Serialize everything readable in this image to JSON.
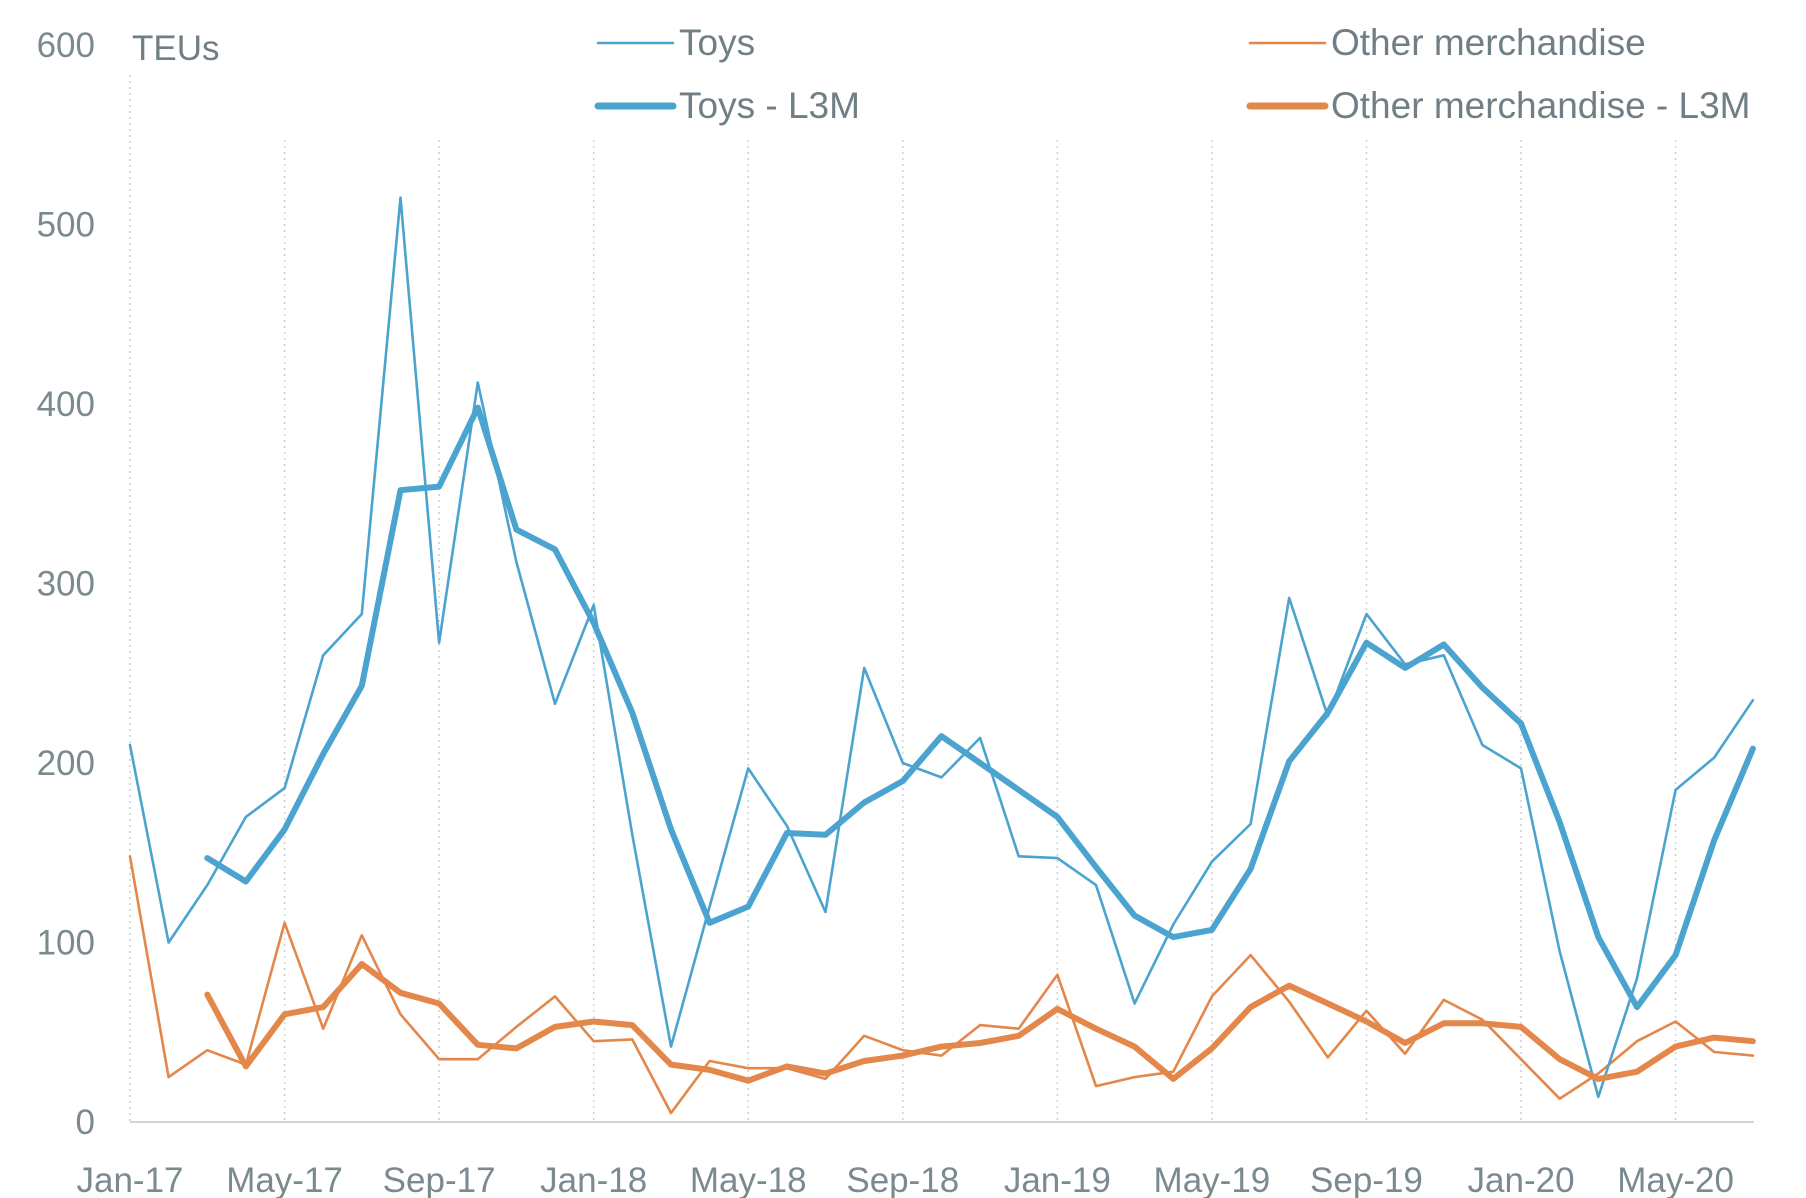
{
  "chart_data": {
    "type": "line",
    "title": "",
    "ylabel": "TEUs",
    "xlabel": "",
    "ylim": [
      0,
      600
    ],
    "yticks": [
      0,
      100,
      200,
      300,
      400,
      500,
      600
    ],
    "grid": "vertical dotted",
    "legend_position": "top",
    "x": [
      "Jan-17",
      "Feb-17",
      "Mar-17",
      "Apr-17",
      "May-17",
      "Jun-17",
      "Jul-17",
      "Aug-17",
      "Sep-17",
      "Oct-17",
      "Nov-17",
      "Dec-17",
      "Jan-18",
      "Feb-18",
      "Mar-18",
      "Apr-18",
      "May-18",
      "Jun-18",
      "Jul-18",
      "Aug-18",
      "Sep-18",
      "Oct-18",
      "Nov-18",
      "Dec-18",
      "Jan-19",
      "Feb-19",
      "Mar-19",
      "Apr-19",
      "May-19",
      "Jun-19",
      "Jul-19",
      "Aug-19",
      "Sep-19",
      "Oct-19",
      "Nov-19",
      "Dec-19",
      "Jan-20",
      "Feb-20",
      "Mar-20",
      "Apr-20",
      "May-20",
      "Jun-20",
      "Jul-20"
    ],
    "x_tick_labels": [
      "Jan-17",
      "May-17",
      "Sep-17",
      "Jan-18",
      "May-18",
      "Sep-18",
      "Jan-19",
      "May-19",
      "Sep-19",
      "Jan-20",
      "May-20"
    ],
    "series": [
      {
        "name": "Toys",
        "color": "#4ba3cf",
        "weight": "thin",
        "values": [
          210,
          100,
          132,
          170,
          186,
          260,
          283,
          515,
          267,
          412,
          312,
          233,
          288,
          160,
          42,
          120,
          197,
          165,
          117,
          253,
          200,
          192,
          214,
          148,
          147,
          132,
          66,
          110,
          145,
          166,
          292,
          226,
          283,
          255,
          260,
          210,
          197,
          95,
          14,
          80,
          185,
          203,
          235
        ]
      },
      {
        "name": "Other merchandise",
        "color": "#e3874a",
        "weight": "thin",
        "values": [
          148,
          25,
          40,
          32,
          111,
          52,
          104,
          60,
          35,
          35,
          53,
          70,
          45,
          46,
          5,
          34,
          30,
          30,
          24,
          48,
          40,
          37,
          54,
          52,
          82,
          20,
          25,
          28,
          70,
          93,
          67,
          36,
          62,
          38,
          68,
          57,
          35,
          13,
          27,
          45,
          56,
          39,
          37
        ]
      },
      {
        "name": "Toys - L3M",
        "color": "#4ba3cf",
        "weight": "thick",
        "values": [
          null,
          null,
          147,
          134,
          163,
          205,
          243,
          352,
          354,
          398,
          330,
          319,
          278,
          228,
          163,
          111,
          120,
          161,
          160,
          178,
          190,
          215,
          200,
          185,
          170,
          142,
          115,
          103,
          107,
          141,
          201,
          228,
          267,
          253,
          266,
          242,
          222,
          167,
          103,
          64,
          93,
          157,
          208
        ]
      },
      {
        "name": "Other merchandise - L3M",
        "color": "#e3874a",
        "weight": "thick",
        "values": [
          null,
          null,
          71,
          31,
          60,
          64,
          88,
          72,
          66,
          43,
          41,
          53,
          56,
          54,
          32,
          29,
          23,
          31,
          27,
          34,
          37,
          42,
          44,
          48,
          63,
          52,
          42,
          24,
          41,
          64,
          76,
          66,
          56,
          44,
          55,
          55,
          53,
          35,
          24,
          28,
          42,
          47,
          45
        ]
      }
    ],
    "legend": [
      {
        "label": "Toys",
        "series": "Toys"
      },
      {
        "label": "Other merchandise",
        "series": "Other merchandise"
      },
      {
        "label": "Toys - L3M",
        "series": "Toys - L3M"
      },
      {
        "label": "Other merchandise - L3M",
        "series": "Other merchandise - L3M"
      }
    ]
  }
}
